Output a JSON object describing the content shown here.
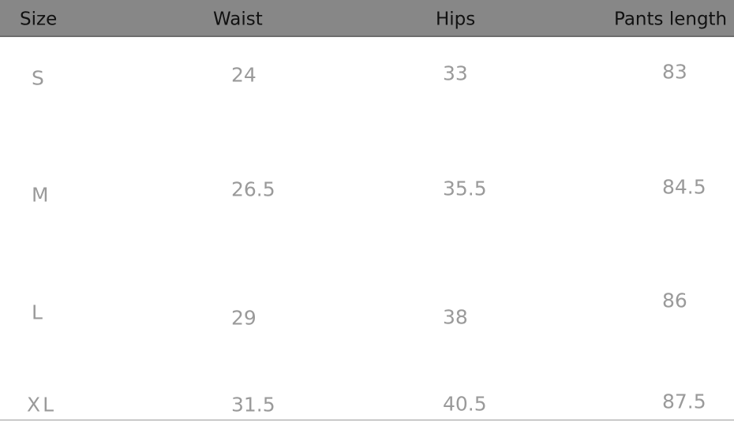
{
  "table": {
    "header": [
      "Size",
      "Waist",
      "Hips",
      "Pants length"
    ],
    "rows": [
      [
        "S",
        24,
        33,
        83
      ],
      [
        "M",
        26.5,
        35.5,
        84.5
      ],
      [
        "L",
        29,
        38,
        86
      ],
      [
        "XL",
        31.5,
        40.5,
        87.5
      ]
    ]
  }
}
